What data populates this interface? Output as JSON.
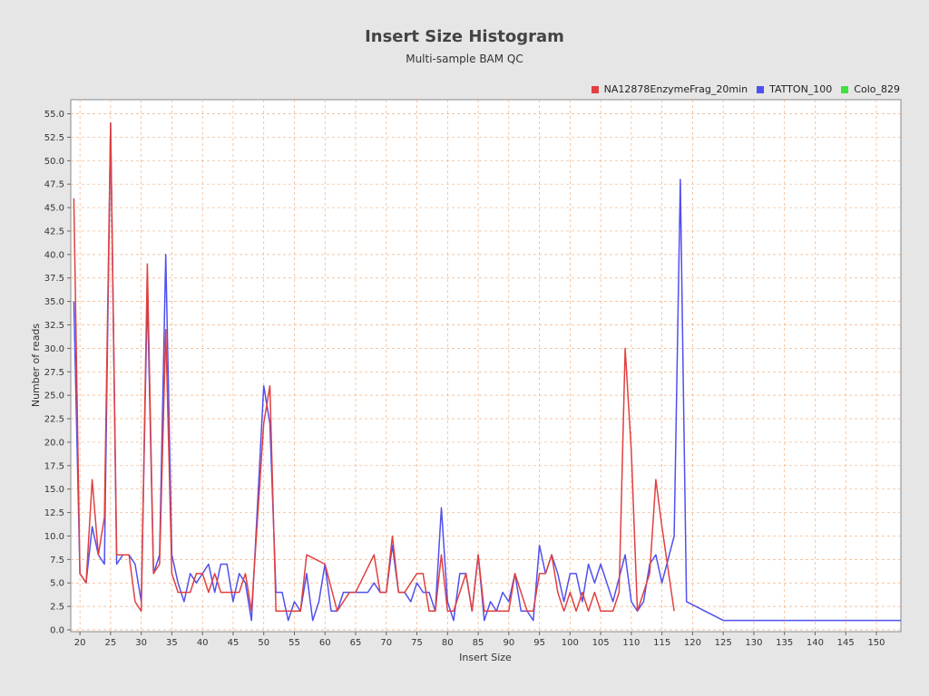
{
  "chart_data": {
    "type": "line",
    "title": "Insert Size Histogram",
    "subtitle": "Multi-sample BAM QC",
    "xlabel": "Insert Size",
    "ylabel": "Number of reads",
    "xlim": [
      18.5,
      154
    ],
    "ylim": [
      0,
      56.5
    ],
    "x_ticks": [
      20,
      25,
      30,
      35,
      40,
      45,
      50,
      55,
      60,
      65,
      70,
      75,
      80,
      85,
      90,
      95,
      100,
      105,
      110,
      115,
      120,
      125,
      130,
      135,
      140,
      145,
      150
    ],
    "y_ticks": [
      "0.0",
      "2.5",
      "5.0",
      "7.5",
      "10.0",
      "12.5",
      "15.0",
      "17.5",
      "20.0",
      "22.5",
      "25.0",
      "27.5",
      "30.0",
      "32.5",
      "35.0",
      "37.5",
      "40.0",
      "42.5",
      "45.0",
      "47.5",
      "50.0",
      "52.5",
      "55.0"
    ],
    "grid": true,
    "legend_position": "top-right",
    "series": [
      {
        "name": "NA12878EnzymeFrag_20min",
        "color": "#e04040",
        "points": [
          [
            19,
            46
          ],
          [
            20,
            6
          ],
          [
            21,
            5
          ],
          [
            22,
            16
          ],
          [
            23,
            8
          ],
          [
            24,
            12
          ],
          [
            25,
            54
          ],
          [
            26,
            8
          ],
          [
            27,
            8
          ],
          [
            28,
            8
          ],
          [
            29,
            3
          ],
          [
            30,
            2
          ],
          [
            31,
            39
          ],
          [
            32,
            6
          ],
          [
            33,
            7
          ],
          [
            34,
            32
          ],
          [
            35,
            6
          ],
          [
            36,
            4
          ],
          [
            37,
            4
          ],
          [
            38,
            4
          ],
          [
            39,
            6
          ],
          [
            40,
            6
          ],
          [
            41,
            4
          ],
          [
            42,
            6
          ],
          [
            43,
            4
          ],
          [
            44,
            4
          ],
          [
            45,
            4
          ],
          [
            46,
            4
          ],
          [
            47,
            6
          ],
          [
            48,
            2
          ],
          [
            50,
            22
          ],
          [
            51,
            26
          ],
          [
            52,
            2
          ],
          [
            53,
            2
          ],
          [
            54,
            2
          ],
          [
            55,
            2
          ],
          [
            56,
            2
          ],
          [
            57,
            8
          ],
          [
            60,
            7
          ],
          [
            62,
            2
          ],
          [
            64,
            4
          ],
          [
            65,
            4
          ],
          [
            68,
            8
          ],
          [
            69,
            4
          ],
          [
            70,
            4
          ],
          [
            71,
            10
          ],
          [
            72,
            4
          ],
          [
            73,
            4
          ],
          [
            75,
            6
          ],
          [
            76,
            6
          ],
          [
            77,
            2
          ],
          [
            78,
            2
          ],
          [
            79,
            8
          ],
          [
            80,
            2
          ],
          [
            81,
            2
          ],
          [
            83,
            6
          ],
          [
            84,
            2
          ],
          [
            85,
            8
          ],
          [
            86,
            2
          ],
          [
            87,
            2
          ],
          [
            88,
            2
          ],
          [
            89,
            2
          ],
          [
            90,
            2
          ],
          [
            91,
            6
          ],
          [
            92,
            4
          ],
          [
            93,
            2
          ],
          [
            94,
            2
          ],
          [
            95,
            6
          ],
          [
            96,
            6
          ],
          [
            97,
            8
          ],
          [
            98,
            4
          ],
          [
            99,
            2
          ],
          [
            100,
            4
          ],
          [
            101,
            2
          ],
          [
            102,
            4
          ],
          [
            103,
            2
          ],
          [
            104,
            4
          ],
          [
            105,
            2
          ],
          [
            106,
            2
          ],
          [
            107,
            2
          ],
          [
            108,
            4
          ],
          [
            109,
            30
          ],
          [
            110,
            19
          ],
          [
            111,
            2
          ],
          [
            112,
            4
          ],
          [
            113,
            6
          ],
          [
            114,
            16
          ],
          [
            115,
            11
          ],
          [
            117,
            2
          ]
        ]
      },
      {
        "name": "TATTON_100",
        "color": "#5050f0",
        "points": [
          [
            19,
            35
          ],
          [
            20,
            6
          ],
          [
            21,
            5
          ],
          [
            22,
            11
          ],
          [
            23,
            8
          ],
          [
            24,
            7
          ],
          [
            25,
            54
          ],
          [
            26,
            7
          ],
          [
            27,
            8
          ],
          [
            28,
            8
          ],
          [
            29,
            7
          ],
          [
            30,
            3
          ],
          [
            31,
            36
          ],
          [
            32,
            6
          ],
          [
            33,
            8
          ],
          [
            34,
            40
          ],
          [
            35,
            8
          ],
          [
            36,
            5
          ],
          [
            37,
            3
          ],
          [
            38,
            6
          ],
          [
            39,
            5
          ],
          [
            40,
            6
          ],
          [
            41,
            7
          ],
          [
            42,
            4
          ],
          [
            43,
            7
          ],
          [
            44,
            7
          ],
          [
            45,
            3
          ],
          [
            46,
            6
          ],
          [
            47,
            5
          ],
          [
            48,
            1
          ],
          [
            50,
            26
          ],
          [
            51,
            22
          ],
          [
            52,
            4
          ],
          [
            53,
            4
          ],
          [
            54,
            1
          ],
          [
            55,
            3
          ],
          [
            56,
            2
          ],
          [
            57,
            6
          ],
          [
            58,
            1
          ],
          [
            59,
            3
          ],
          [
            60,
            7
          ],
          [
            61,
            2
          ],
          [
            62,
            2
          ],
          [
            63,
            4
          ],
          [
            64,
            4
          ],
          [
            65,
            4
          ],
          [
            66,
            4
          ],
          [
            67,
            4
          ],
          [
            68,
            5
          ],
          [
            69,
            4
          ],
          [
            70,
            4
          ],
          [
            71,
            9
          ],
          [
            72,
            4
          ],
          [
            73,
            4
          ],
          [
            74,
            3
          ],
          [
            75,
            5
          ],
          [
            76,
            4
          ],
          [
            77,
            4
          ],
          [
            78,
            2
          ],
          [
            79,
            13
          ],
          [
            80,
            3
          ],
          [
            81,
            1
          ],
          [
            82,
            6
          ],
          [
            83,
            6
          ],
          [
            84,
            2
          ],
          [
            85,
            8
          ],
          [
            86,
            1
          ],
          [
            87,
            3
          ],
          [
            88,
            2
          ],
          [
            89,
            4
          ],
          [
            90,
            3
          ],
          [
            91,
            6
          ],
          [
            92,
            2
          ],
          [
            93,
            2
          ],
          [
            94,
            1
          ],
          [
            95,
            9
          ],
          [
            96,
            6
          ],
          [
            97,
            8
          ],
          [
            98,
            6
          ],
          [
            99,
            3
          ],
          [
            100,
            6
          ],
          [
            101,
            6
          ],
          [
            102,
            3
          ],
          [
            103,
            7
          ],
          [
            104,
            5
          ],
          [
            105,
            7
          ],
          [
            106,
            5
          ],
          [
            107,
            3
          ],
          [
            109,
            8
          ],
          [
            110,
            3
          ],
          [
            111,
            2
          ],
          [
            112,
            3
          ],
          [
            113,
            7
          ],
          [
            114,
            8
          ],
          [
            115,
            5
          ],
          [
            117,
            10
          ],
          [
            118,
            48
          ],
          [
            119,
            3
          ],
          [
            125,
            1
          ],
          [
            154,
            1
          ]
        ]
      },
      {
        "name": "Colo_829",
        "color": "#40e040",
        "points": []
      }
    ]
  }
}
